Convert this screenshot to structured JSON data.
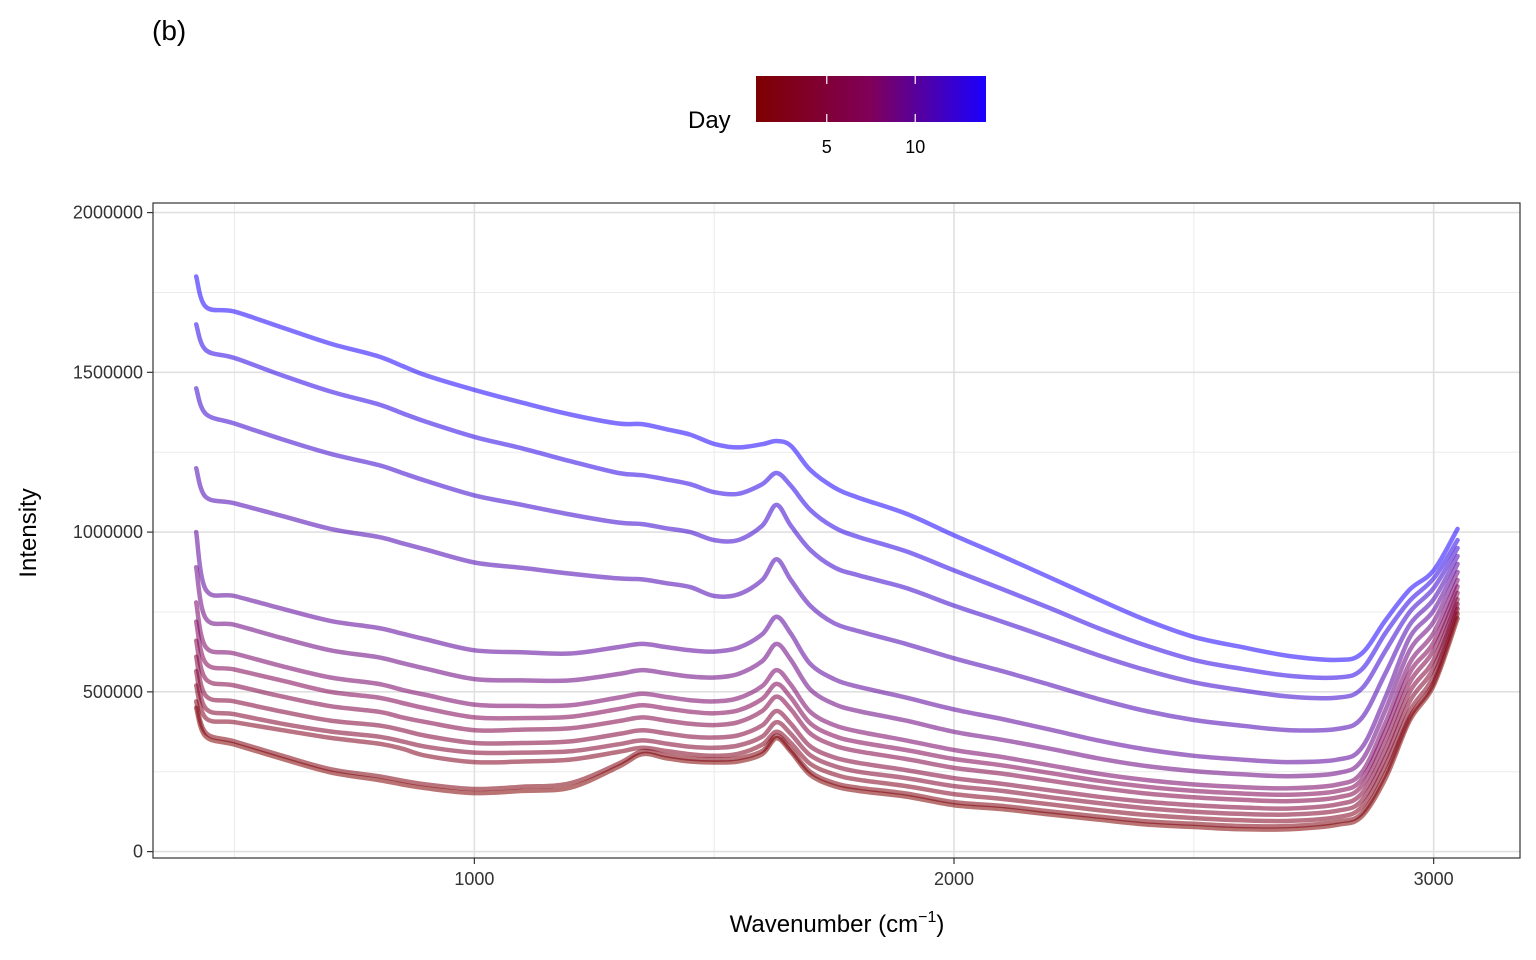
{
  "chart_data": {
    "type": "line",
    "panel_label": "(b)",
    "title": "",
    "xlabel": "Wavenumber (cm",
    "xlabel_sup": "−1",
    "xlabel_close": ")",
    "ylabel": "Intensity",
    "xlim": [
      330,
      3180
    ],
    "ylim": [
      -20000,
      2030000
    ],
    "x_ticks": [
      1000,
      2000,
      3000
    ],
    "x_tick_labels": [
      "1000",
      "2000",
      "3000"
    ],
    "x_minor_ticks": [
      500,
      1500,
      2500
    ],
    "y_ticks": [
      0,
      500000,
      1000000,
      1500000,
      2000000
    ],
    "y_tick_labels": [
      "0",
      "500000",
      "1000000",
      "1500000",
      "2000000"
    ],
    "y_minor_ticks": [
      250000,
      750000,
      1250000,
      1750000
    ],
    "grid": true,
    "legend": {
      "title": "Day",
      "position": "top",
      "type": "colorbar",
      "min_day": 1,
      "max_day": 14,
      "ticks": [
        5,
        10
      ],
      "tick_labels": [
        "5",
        "10"
      ],
      "color_low": "#7f0000",
      "color_mid": "#80005a",
      "color_high": "#1a00ff"
    },
    "x": [
      420,
      440,
      500,
      600,
      700,
      800,
      850,
      900,
      1000,
      1100,
      1200,
      1300,
      1350,
      1400,
      1450,
      1500,
      1550,
      1600,
      1630,
      1660,
      1700,
      1750,
      1800,
      1900,
      2000,
      2100,
      2200,
      2300,
      2400,
      2500,
      2600,
      2700,
      2800,
      2850,
      2900,
      2950,
      3000,
      3050
    ],
    "series": [
      {
        "name": "Day 1",
        "day": 1,
        "values": [
          450000,
          360000,
          335000,
          290000,
          248000,
          224000,
          210000,
          198000,
          183000,
          190000,
          200000,
          265000,
          305000,
          292000,
          282000,
          279000,
          282000,
          305000,
          355000,
          312000,
          240000,
          205000,
          190000,
          172000,
          145000,
          133000,
          116000,
          100000,
          85000,
          77000,
          70000,
          70000,
          84000,
          110000,
          230000,
          410000,
          520000,
          730000
        ]
      },
      {
        "name": "Day 2",
        "day": 2,
        "values": [
          470000,
          372000,
          345000,
          300000,
          258000,
          236000,
          222000,
          210000,
          196000,
          203000,
          214000,
          275000,
          314000,
          301000,
          291000,
          288000,
          292000,
          315000,
          363000,
          320000,
          250000,
          215000,
          200000,
          182000,
          155000,
          143000,
          126000,
          110000,
          95000,
          87000,
          80000,
          80000,
          94000,
          120000,
          245000,
          420000,
          530000,
          745000
        ]
      },
      {
        "name": "Day 3",
        "day": 3,
        "values": [
          520000,
          418000,
          405000,
          380000,
          356000,
          338000,
          322000,
          300000,
          280000,
          282000,
          288000,
          312000,
          325000,
          315000,
          305000,
          300000,
          306000,
          335000,
          375000,
          340000,
          275000,
          242000,
          225000,
          205000,
          180000,
          165000,
          148000,
          130000,
          115000,
          105000,
          98000,
          96000,
          108000,
          140000,
          270000,
          440000,
          550000,
          760000
        ]
      },
      {
        "name": "Day 4",
        "day": 4,
        "values": [
          565000,
          448000,
          430000,
          400000,
          376000,
          360000,
          345000,
          328000,
          310000,
          310000,
          314000,
          336000,
          348000,
          338000,
          328000,
          325000,
          332000,
          360000,
          405000,
          368000,
          302000,
          268000,
          250000,
          230000,
          205000,
          190000,
          170000,
          152000,
          136000,
          125000,
          118000,
          116000,
          128000,
          160000,
          295000,
          470000,
          575000,
          775000
        ]
      },
      {
        "name": "Day 5",
        "day": 5,
        "values": [
          610000,
          488000,
          470000,
          438000,
          410000,
          395000,
          380000,
          362000,
          340000,
          340000,
          345000,
          368000,
          380000,
          370000,
          360000,
          357000,
          364000,
          395000,
          440000,
          400000,
          330000,
          295000,
          278000,
          255000,
          230000,
          212000,
          192000,
          172000,
          156000,
          145000,
          138000,
          135000,
          148000,
          182000,
          320000,
          500000,
          600000,
          790000
        ]
      },
      {
        "name": "Day 6",
        "day": 6,
        "values": [
          660000,
          540000,
          520000,
          485000,
          455000,
          438000,
          420000,
          405000,
          380000,
          382000,
          386000,
          408000,
          420000,
          410000,
          400000,
          396000,
          405000,
          440000,
          485000,
          445000,
          370000,
          332000,
          314000,
          290000,
          262000,
          244000,
          222000,
          200000,
          182000,
          170000,
          162000,
          158000,
          170000,
          205000,
          350000,
          530000,
          630000,
          810000
        ]
      },
      {
        "name": "Day 7",
        "day": 7,
        "values": [
          720000,
          590000,
          570000,
          535000,
          500000,
          482000,
          465000,
          448000,
          420000,
          418000,
          422000,
          446000,
          458000,
          448000,
          438000,
          433000,
          442000,
          478000,
          525000,
          482000,
          402000,
          362000,
          343000,
          318000,
          290000,
          270000,
          246000,
          222000,
          203000,
          190000,
          182000,
          178000,
          190000,
          226000,
          378000,
          560000,
          655000,
          830000
        ]
      },
      {
        "name": "Day 8",
        "day": 8,
        "values": [
          780000,
          640000,
          620000,
          580000,
          545000,
          525000,
          506000,
          490000,
          460000,
          456000,
          458000,
          482000,
          494000,
          484000,
          474000,
          470000,
          480000,
          518000,
          568000,
          522000,
          438000,
          396000,
          376000,
          348000,
          318000,
          296000,
          270000,
          244000,
          224000,
          210000,
          202000,
          198000,
          210000,
          248000,
          405000,
          590000,
          685000,
          850000
        ]
      },
      {
        "name": "Day 9",
        "day": 9,
        "values": [
          890000,
          730000,
          710000,
          668000,
          630000,
          608000,
          590000,
          572000,
          540000,
          536000,
          536000,
          556000,
          568000,
          558000,
          548000,
          545000,
          556000,
          596000,
          650000,
          600000,
          508000,
          462000,
          440000,
          410000,
          375000,
          350000,
          322000,
          292000,
          268000,
          252000,
          242000,
          236000,
          246000,
          285000,
          445000,
          630000,
          720000,
          875000
        ]
      },
      {
        "name": "Day 10",
        "day": 10,
        "values": [
          1000000,
          820000,
          800000,
          760000,
          722000,
          700000,
          682000,
          664000,
          630000,
          624000,
          620000,
          640000,
          650000,
          640000,
          630000,
          626000,
          638000,
          680000,
          735000,
          682000,
          588000,
          540000,
          516000,
          482000,
          445000,
          415000,
          382000,
          348000,
          320000,
          300000,
          288000,
          280000,
          288000,
          325000,
          485000,
          670000,
          755000,
          900000
        ]
      },
      {
        "name": "Day 11",
        "day": 11,
        "values": [
          1200000,
          1110000,
          1090000,
          1050000,
          1010000,
          985000,
          965000,
          945000,
          905000,
          888000,
          870000,
          855000,
          852000,
          840000,
          828000,
          800000,
          805000,
          850000,
          915000,
          850000,
          770000,
          715000,
          690000,
          650000,
          605000,
          565000,
          522000,
          478000,
          440000,
          412000,
          394000,
          380000,
          384000,
          418000,
          560000,
          710000,
          790000,
          925000
        ]
      },
      {
        "name": "Day 12",
        "day": 12,
        "values": [
          1450000,
          1370000,
          1340000,
          1290000,
          1245000,
          1210000,
          1185000,
          1160000,
          1115000,
          1085000,
          1055000,
          1030000,
          1025000,
          1012000,
          1000000,
          975000,
          975000,
          1020000,
          1085000,
          1020000,
          945000,
          890000,
          865000,
          825000,
          770000,
          720000,
          668000,
          615000,
          568000,
          530000,
          505000,
          485000,
          482000,
          510000,
          630000,
          750000,
          825000,
          950000
        ]
      },
      {
        "name": "Day 13",
        "day": 13,
        "values": [
          1650000,
          1570000,
          1545000,
          1490000,
          1440000,
          1400000,
          1372000,
          1345000,
          1298000,
          1262000,
          1222000,
          1185000,
          1178000,
          1165000,
          1150000,
          1125000,
          1120000,
          1150000,
          1185000,
          1145000,
          1070000,
          1015000,
          985000,
          940000,
          880000,
          822000,
          762000,
          700000,
          645000,
          600000,
          572000,
          550000,
          545000,
          570000,
          685000,
          785000,
          855000,
          975000
        ]
      },
      {
        "name": "Day 14",
        "day": 14,
        "values": [
          1800000,
          1705000,
          1690000,
          1640000,
          1590000,
          1550000,
          1520000,
          1490000,
          1445000,
          1405000,
          1368000,
          1340000,
          1338000,
          1322000,
          1305000,
          1276000,
          1265000,
          1275000,
          1285000,
          1270000,
          1195000,
          1140000,
          1108000,
          1058000,
          990000,
          925000,
          858000,
          790000,
          725000,
          672000,
          640000,
          612000,
          600000,
          620000,
          725000,
          820000,
          880000,
          1010000
        ]
      }
    ]
  }
}
